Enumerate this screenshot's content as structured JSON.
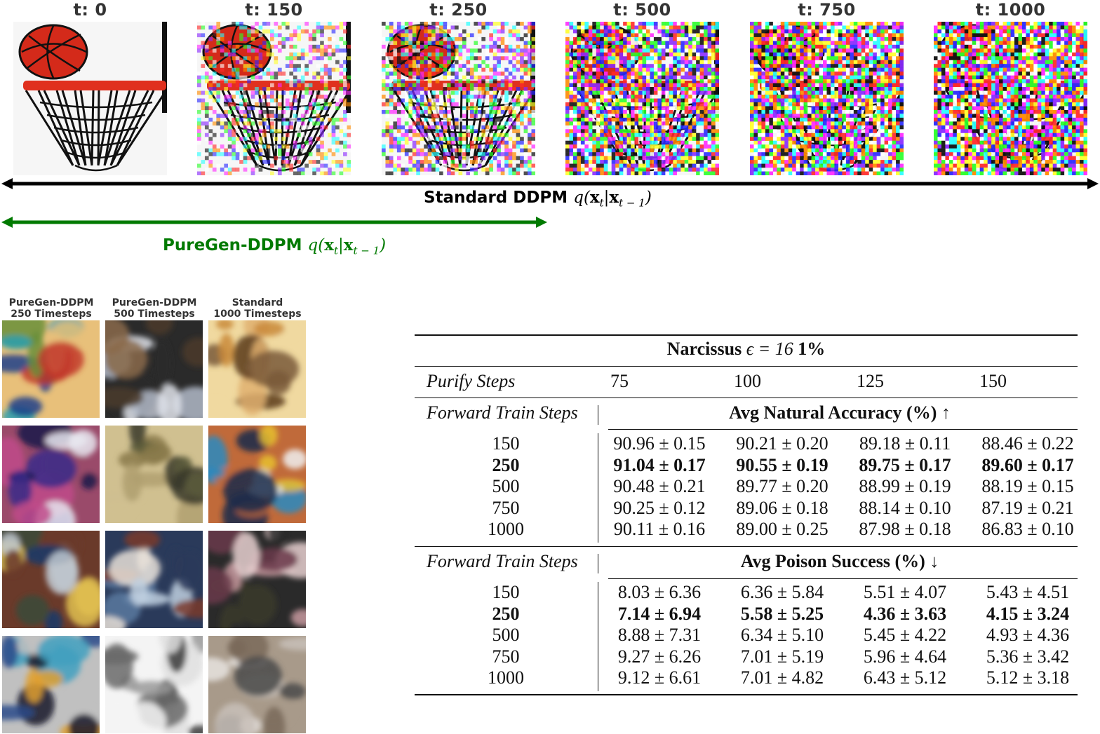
{
  "timesteps": [
    {
      "label": "t: 0",
      "noise": 0.0
    },
    {
      "label": "t: 150",
      "noise": 0.45
    },
    {
      "label": "t: 250",
      "noise": 0.62
    },
    {
      "label": "t: 500",
      "noise": 0.9
    },
    {
      "label": "t: 750",
      "noise": 0.97
    },
    {
      "label": "t: 1000",
      "noise": 1.0
    }
  ],
  "arrows": {
    "standard": {
      "label": "Standard DDPM",
      "color": "#000000"
    },
    "puregen": {
      "label": "PureGen-DDPM",
      "color": "#007a00"
    },
    "math": {
      "q": "q",
      "x": "x",
      "sub_t": "t",
      "sub_t1": "t − 1"
    }
  },
  "sample_grid": {
    "columns": [
      {
        "line1": "PureGen-DDPM",
        "line2": "250 Timesteps"
      },
      {
        "line1": "PureGen-DDPM",
        "line2": "500 Timesteps"
      },
      {
        "line1": "Standard",
        "line2": "1000 Timesteps"
      }
    ]
  },
  "table": {
    "title_prefix": "Narcissus",
    "title_math": "ϵ = 16",
    "title_suffix": "1%",
    "purify_label": "Purify Steps",
    "purify_steps": [
      "75",
      "100",
      "125",
      "150"
    ],
    "row_header": "Forward Train Steps",
    "sections": [
      {
        "title": "Avg Natural Accuracy (%) ↑",
        "rows": [
          {
            "steps": "150",
            "bold": false,
            "values": [
              "90.96 ± 0.15",
              "90.21 ± 0.20",
              "89.18 ± 0.11",
              "88.46 ± 0.22"
            ]
          },
          {
            "steps": "250",
            "bold": true,
            "values": [
              "91.04 ± 0.17",
              "90.55 ± 0.19",
              "89.75 ± 0.17",
              "89.60 ± 0.17"
            ]
          },
          {
            "steps": "500",
            "bold": false,
            "values": [
              "90.48 ± 0.21",
              "89.77 ± 0.20",
              "88.99 ± 0.19",
              "88.19 ± 0.15"
            ]
          },
          {
            "steps": "750",
            "bold": false,
            "values": [
              "90.25 ± 0.12",
              "89.06 ± 0.18",
              "88.14 ± 0.10",
              "87.19 ± 0.21"
            ]
          },
          {
            "steps": "1000",
            "bold": false,
            "values": [
              "90.11 ± 0.16",
              "89.00 ± 0.25",
              "87.98 ± 0.18",
              "86.83 ± 0.10"
            ]
          }
        ]
      },
      {
        "title": "Avg Poison Success (%) ↓",
        "rows": [
          {
            "steps": "150",
            "bold": false,
            "values": [
              "8.03 ± 6.36",
              "6.36 ± 5.84",
              "5.51 ± 4.07",
              "5.43 ± 4.51"
            ]
          },
          {
            "steps": "250",
            "bold": true,
            "values": [
              "7.14 ± 6.94",
              "5.58 ± 5.25",
              "4.36 ± 3.63",
              "4.15 ± 3.24"
            ]
          },
          {
            "steps": "500",
            "bold": false,
            "values": [
              "8.88 ± 7.31",
              "6.34 ± 5.10",
              "5.45 ± 4.22",
              "4.93 ± 4.36"
            ]
          },
          {
            "steps": "750",
            "bold": false,
            "values": [
              "9.27 ± 6.26",
              "7.01 ± 5.19",
              "5.96 ± 4.64",
              "5.36 ± 3.42"
            ]
          },
          {
            "steps": "1000",
            "bold": false,
            "values": [
              "9.12 ± 6.61",
              "7.01 ± 4.82",
              "6.43 ± 5.12",
              "5.12 ± 3.18"
            ]
          }
        ]
      }
    ]
  }
}
